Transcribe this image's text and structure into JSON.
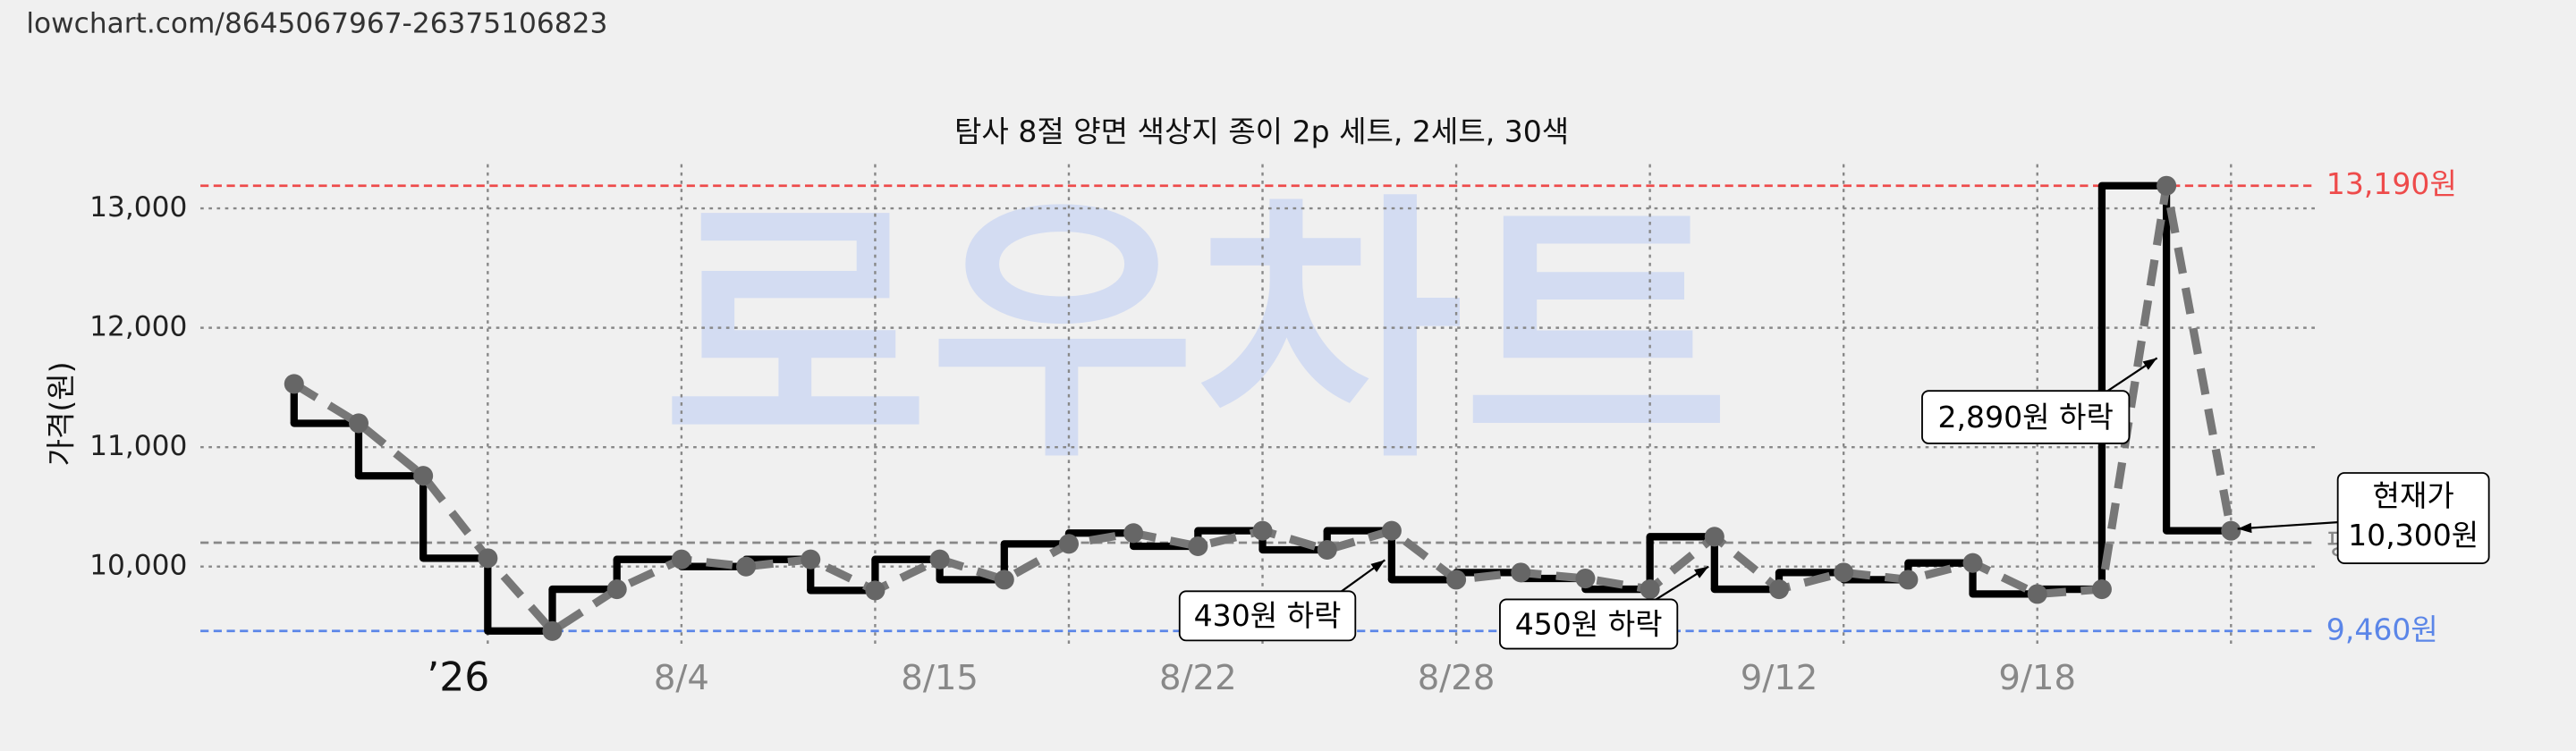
{
  "chart_data": {
    "type": "line",
    "source": "lowchart.com/8645067967-26375106823",
    "watermark": "로우차트",
    "title": "탐사 8절 양면 색상지 종이 2p 세트, 2세트, 30색",
    "y_label": "가격(원)",
    "categories": [
      null,
      null,
      null,
      "’26",
      null,
      null,
      "8/4",
      null,
      null,
      null,
      "8/15",
      null,
      null,
      null,
      "8/22",
      null,
      null,
      null,
      "8/28",
      null,
      null,
      null,
      null,
      "9/12",
      null,
      null,
      null,
      "9/18",
      null,
      null,
      null
    ],
    "series": [
      {
        "color": "#777777",
        "values": [
          11530,
          11200,
          10760,
          10070,
          9460,
          9810,
          10060,
          10000,
          10060,
          9800,
          10060,
          9890,
          10190,
          10280,
          10170,
          10300,
          10140,
          10300,
          9890,
          9950,
          9900,
          9810,
          10250,
          9810,
          9950,
          9890,
          10030,
          9770,
          9810,
          13190,
          10300
        ]
      }
    ],
    "ylim": [
      9312,
      13370
    ],
    "yticks": [
      {
        "value": 10000,
        "label": "10,000"
      },
      {
        "value": 11000,
        "label": "11,000"
      },
      {
        "value": 12000,
        "label": "12,000"
      },
      {
        "value": 13000,
        "label": "13,000"
      }
    ],
    "reference_lines": [
      {
        "value": 13190,
        "label": "13,190원",
        "color": "#ee4b4b"
      },
      {
        "value": 9460,
        "label": "9,460원",
        "color": "#5b86e8"
      },
      {
        "value": 10200,
        "label": "평균",
        "color": "#888888"
      }
    ],
    "annotations": [
      {
        "text": "430원 하락"
      },
      {
        "text": "450원 하락"
      },
      {
        "text": "2,890원 하락"
      },
      {
        "text": [
          "현재가",
          "10,300원"
        ]
      }
    ]
  }
}
